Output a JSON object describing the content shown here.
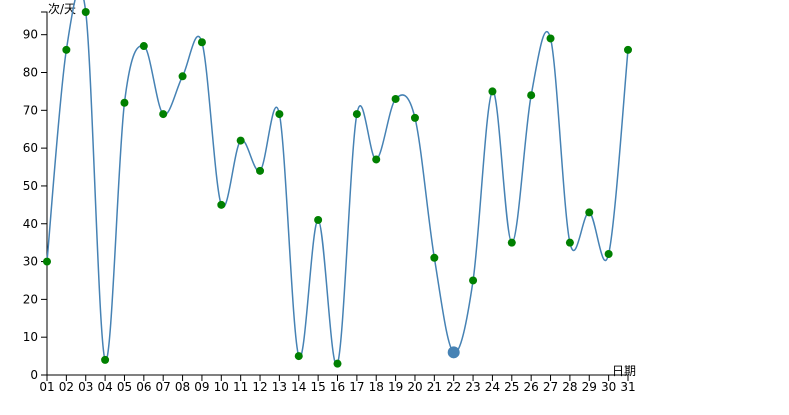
{
  "chart_data": {
    "type": "line",
    "y_label": "次/天",
    "x_label": "日期",
    "categories": [
      "01",
      "02",
      "03",
      "04",
      "05",
      "06",
      "07",
      "08",
      "09",
      "10",
      "11",
      "12",
      "13",
      "14",
      "15",
      "16",
      "17",
      "18",
      "19",
      "20",
      "21",
      "22",
      "23",
      "24",
      "25",
      "26",
      "27",
      "28",
      "29",
      "30",
      "31"
    ],
    "series": [
      {
        "color": "#4682b4",
        "point_color": "#008000",
        "values": [
          30,
          86,
          96,
          4,
          72,
          87,
          69,
          79,
          88,
          45,
          62,
          54,
          69,
          5,
          41,
          3,
          69,
          57,
          73,
          68,
          31,
          6,
          25,
          75,
          35,
          74,
          89,
          35,
          43,
          32,
          86
        ]
      }
    ],
    "highlighted_point": 21,
    "highlight_color": "#4682b4",
    "ylim": [
      0,
      96
    ],
    "yticks": [
      0,
      10,
      20,
      30,
      40,
      50,
      60,
      70,
      80,
      90
    ]
  }
}
